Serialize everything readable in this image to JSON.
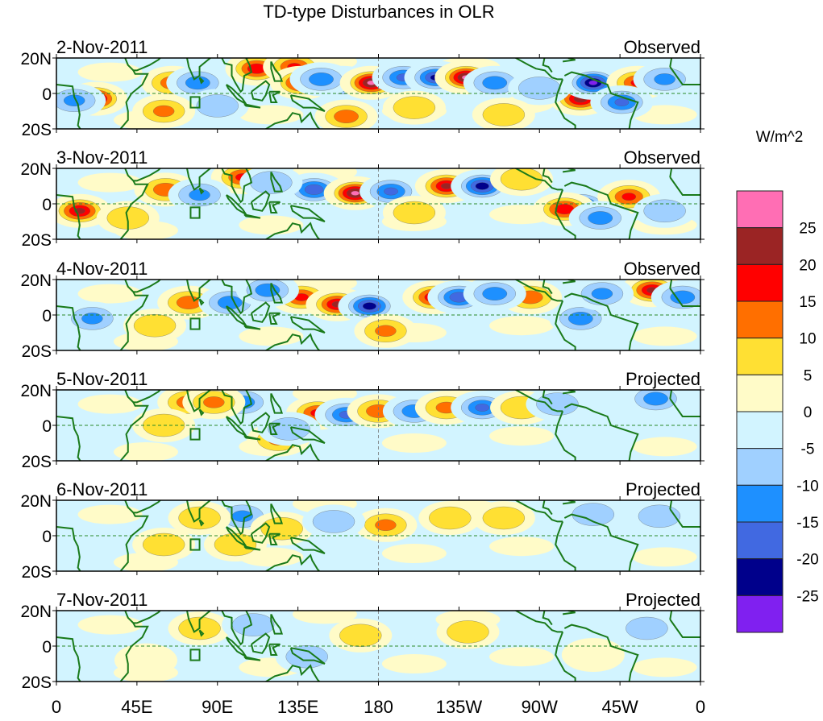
{
  "chart_data": {
    "type": "heatmap",
    "title": "TD-type Disturbances in OLR",
    "units_label": "W/m^2",
    "lon_range": [
      0,
      360
    ],
    "lat_range": [
      -20,
      20
    ],
    "lat_tick_labels": [
      "20N",
      "0",
      "20S"
    ],
    "lat_ticks": [
      20,
      0,
      -20
    ],
    "lon_tick_labels": [
      "0",
      "45E",
      "90E",
      "135E",
      "180",
      "135W",
      "90W",
      "45W",
      "0"
    ],
    "lon_ticks": [
      0,
      45,
      90,
      135,
      180,
      225,
      270,
      315,
      360
    ],
    "colorbar": {
      "levels": [
        25,
        20,
        15,
        10,
        5,
        0,
        -5,
        -10,
        -15,
        -20,
        -25
      ],
      "level_labels": [
        "25",
        "20",
        "15",
        "10",
        "5",
        "0",
        "-5",
        "-10",
        "-15",
        "-20",
        "-25"
      ],
      "colors": [
        "#FF6EB4",
        "#9B2424",
        "#FF0000",
        "#FF6F00",
        "#FFE033",
        "#FFFBC8",
        "#D2F4FF",
        "#A0D0FF",
        "#1E90FF",
        "#4169E1",
        "#00008B",
        "#8020F0"
      ]
    },
    "panels": [
      {
        "date": "2-Nov-2011",
        "kind": "Observed",
        "anomalies": [
          [
            22,
            -3,
            22
          ],
          [
            65,
            6,
            12
          ],
          [
            79,
            6,
            -12
          ],
          [
            112,
            14,
            18
          ],
          [
            133,
            15,
            15
          ],
          [
            137,
            6,
            20
          ],
          [
            160,
            6,
            -22
          ],
          [
            148,
            8,
            -12
          ],
          [
            176,
            6,
            25
          ],
          [
            194,
            9,
            -15
          ],
          [
            212,
            9,
            -20
          ],
          [
            229,
            9,
            25
          ],
          [
            245,
            6,
            -12
          ],
          [
            293,
            -3,
            22
          ],
          [
            300,
            6,
            -25
          ],
          [
            325,
            6,
            15
          ],
          [
            316,
            -5,
            -15
          ],
          [
            162,
            -13,
            12
          ],
          [
            10,
            -4,
            -10
          ],
          [
            90,
            -7,
            -8
          ],
          [
            60,
            -10,
            10
          ],
          [
            270,
            3,
            -8
          ],
          [
            340,
            8,
            -10
          ],
          [
            200,
            -8,
            6
          ],
          [
            250,
            -12,
            5
          ]
        ]
      },
      {
        "date": "3-Nov-2011",
        "kind": "Observed",
        "anomalies": [
          [
            13,
            -4,
            20
          ],
          [
            61,
            8,
            12
          ],
          [
            104,
            15,
            15
          ],
          [
            144,
            8,
            -18
          ],
          [
            167,
            6,
            25
          ],
          [
            187,
            7,
            -15
          ],
          [
            218,
            10,
            20
          ],
          [
            238,
            10,
            -22
          ],
          [
            293,
            -1,
            -20
          ],
          [
            284,
            -3,
            18
          ],
          [
            320,
            4,
            15
          ],
          [
            304,
            -8,
            -12
          ],
          [
            80,
            5,
            -10
          ],
          [
            120,
            12,
            -8
          ],
          [
            40,
            -8,
            8
          ],
          [
            200,
            -5,
            6
          ],
          [
            340,
            -4,
            -8
          ],
          [
            260,
            14,
            8
          ]
        ]
      },
      {
        "date": "4-Nov-2011",
        "kind": "Observed",
        "anomalies": [
          [
            74,
            7,
            12
          ],
          [
            97,
            7,
            -12
          ],
          [
            137,
            10,
            15
          ],
          [
            157,
            6,
            20
          ],
          [
            175,
            5,
            -22
          ],
          [
            211,
            10,
            18
          ],
          [
            225,
            10,
            -18
          ],
          [
            265,
            10,
            12
          ],
          [
            333,
            14,
            20
          ],
          [
            293,
            -2,
            -12
          ],
          [
            184,
            -9,
            10
          ],
          [
            20,
            -2,
            -10
          ],
          [
            55,
            -6,
            8
          ],
          [
            118,
            14,
            -12
          ],
          [
            245,
            12,
            -12
          ],
          [
            350,
            10,
            -12
          ],
          [
            305,
            12,
            -10
          ]
        ]
      },
      {
        "date": "5-Nov-2011",
        "kind": "Projected",
        "anomalies": [
          [
            74,
            13,
            12
          ],
          [
            104,
            13,
            -12
          ],
          [
            146,
            7,
            15
          ],
          [
            162,
            6,
            -15
          ],
          [
            180,
            8,
            12
          ],
          [
            200,
            8,
            -12
          ],
          [
            218,
            10,
            10
          ],
          [
            238,
            10,
            -15
          ],
          [
            335,
            15,
            -12
          ],
          [
            124,
            -8,
            10
          ],
          [
            88,
            13,
            10
          ],
          [
            60,
            0,
            8
          ],
          [
            130,
            -2,
            -8
          ],
          [
            260,
            10,
            8
          ],
          [
            280,
            12,
            -8
          ]
        ]
      },
      {
        "date": "6-Nov-2011",
        "kind": "Projected",
        "anomalies": [
          [
            104,
            11,
            -10
          ],
          [
            184,
            6,
            10
          ],
          [
            220,
            10,
            8
          ],
          [
            126,
            4,
            8
          ],
          [
            337,
            11,
            -8
          ],
          [
            80,
            10,
            6
          ],
          [
            155,
            8,
            -8
          ],
          [
            250,
            10,
            6
          ],
          [
            100,
            -5,
            6
          ],
          [
            60,
            -5,
            5
          ],
          [
            300,
            12,
            -6
          ]
        ]
      },
      {
        "date": "7-Nov-2011",
        "kind": "Projected",
        "anomalies": [
          [
            80,
            10,
            5
          ],
          [
            110,
            12,
            -6
          ],
          [
            170,
            6,
            5
          ],
          [
            230,
            8,
            5
          ],
          [
            300,
            -5,
            4
          ],
          [
            50,
            -8,
            4
          ],
          [
            140,
            -6,
            -5
          ],
          [
            330,
            10,
            -5
          ]
        ]
      }
    ]
  }
}
